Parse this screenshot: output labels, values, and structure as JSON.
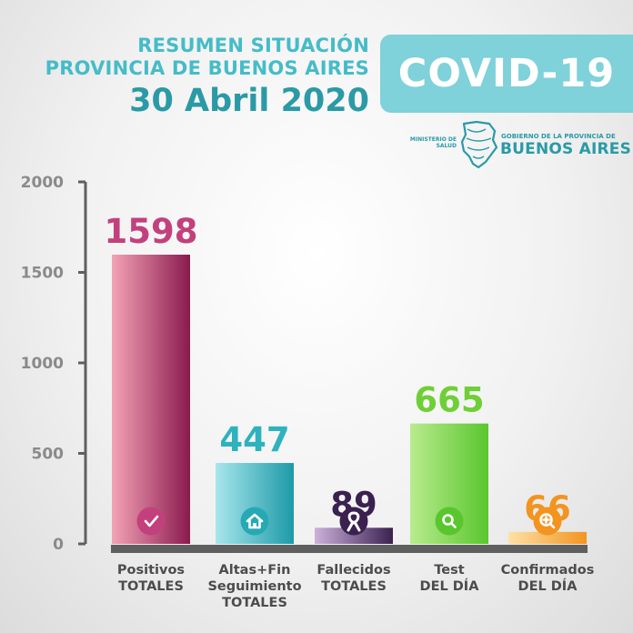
{
  "header": {
    "line1": "RESUMEN SITUACIÓN",
    "line2": "PROVINCIA DE BUENOS AIRES",
    "date": "30 Abril 2020",
    "badge": "COVID-19"
  },
  "logo": {
    "ministerio": "MINISTERIO DE SALUD",
    "gobierno": "GOBIERNO DE LA PROVINCIA DE",
    "province": "BUENOS AIRES"
  },
  "colors": {
    "title": "#45bcc8",
    "date": "#2a9aa6",
    "badge_bg": "#7fd1da",
    "axis": "#5f5f5f"
  },
  "chart_data": {
    "type": "bar",
    "title": "",
    "xlabel": "",
    "ylabel": "",
    "ylim": [
      0,
      2000
    ],
    "yticks": [
      0,
      500,
      1000,
      1500,
      2000
    ],
    "grid": false,
    "legend": "none",
    "categories": [
      [
        "Positivos",
        "TOTALES"
      ],
      [
        "Altas+Fin",
        "Seguimiento",
        "TOTALES"
      ],
      [
        "Fallecidos",
        "TOTALES"
      ],
      [
        "Test",
        "DEL DÍA"
      ],
      [
        "Confirmados",
        "DEL DÍA"
      ]
    ],
    "values": [
      1598,
      447,
      89,
      665,
      66
    ],
    "value_labels": [
      "1598",
      "447",
      "89",
      "665",
      "66"
    ],
    "bar_colors": [
      [
        "#f4a3b6",
        "#8a1a4e"
      ],
      [
        "#a8e6ec",
        "#1d9aa8"
      ],
      [
        "#cdb1dc",
        "#3a2150"
      ],
      [
        "#b9eb8e",
        "#5ac62e"
      ],
      [
        "#fde1a6",
        "#f39420"
      ]
    ],
    "label_colors": [
      "#c2417c",
      "#2eb2be",
      "#3a2150",
      "#6fcf36",
      "#f39420"
    ],
    "icon_colors": [
      "#c2417c",
      "#27a9b5",
      "#3a2150",
      "#5ac62e",
      "#f39420"
    ],
    "icons": [
      "check-icon",
      "home-icon",
      "ribbon-icon",
      "search-icon",
      "zoom-plus-icon"
    ]
  }
}
